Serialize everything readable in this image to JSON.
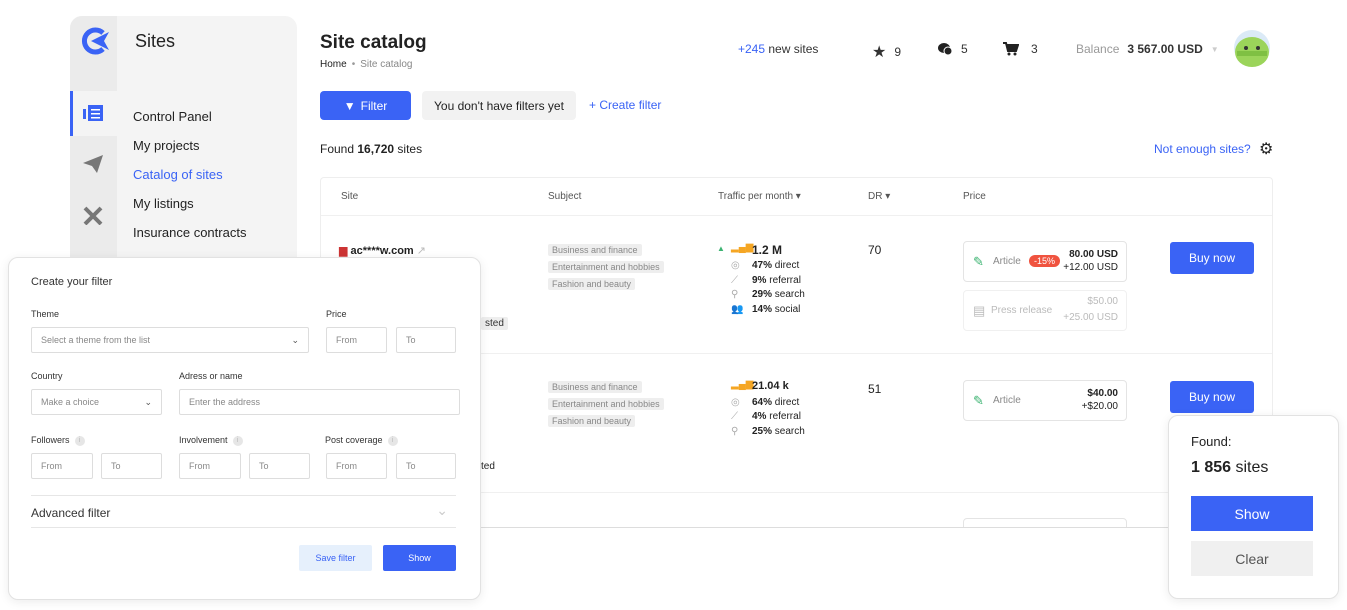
{
  "sidebar": {
    "title": "Sites",
    "items": [
      {
        "label": "Control Panel"
      },
      {
        "label": "My projects"
      },
      {
        "label": "Catalog of sites",
        "active": true
      },
      {
        "label": "My listings"
      },
      {
        "label": "Insurance contracts"
      }
    ]
  },
  "header": {
    "title": "Site catalog",
    "breadcrumb": [
      "Home",
      "Site catalog"
    ],
    "new_sites_count": "+245",
    "new_sites_label": "new sites",
    "favorites": "9",
    "messages": "5",
    "cart": "3",
    "balance_label": "Balance",
    "balance_value": "3 567.00 USD"
  },
  "toolbar": {
    "filter_label": "Filter",
    "no_filters": "You don't have filters yet",
    "create_filter": "+ Create filter"
  },
  "results": {
    "found_prefix": "Found",
    "found_count": "16,720",
    "found_suffix": "sites",
    "not_enough": "Not enough sites?"
  },
  "table": {
    "columns": [
      "Site",
      "Subject",
      "Traffic per month ▾",
      "DR ▾",
      "Price"
    ],
    "rows": [
      {
        "site": "ac****w.com",
        "partial_tag": "sted",
        "subjects": [
          "Business and finance",
          "Entertainment and hobbies",
          "Fashion and beauty"
        ],
        "traffic": "1.2 M",
        "direct": "47%",
        "referral": "9%",
        "search": "29%",
        "social": "14%",
        "dr": "70",
        "prices": [
          {
            "type": "Article",
            "discount": "-15%",
            "price": "80.00 USD",
            "extra": "+12.00 USD"
          },
          {
            "type": "Press release",
            "price": "$50.00",
            "extra": "+25.00 USD"
          }
        ],
        "buy": "Buy now"
      },
      {
        "site": "",
        "partial_tag": "ted",
        "subjects": [
          "Business and finance",
          "Entertainment and hobbies",
          "Fashion and beauty"
        ],
        "traffic": "21.04 k",
        "direct": "64%",
        "referral": "4%",
        "search": "25%",
        "dr": "51",
        "prices": [
          {
            "type": "Article",
            "price": "$40.00",
            "extra": "+$20.00"
          }
        ],
        "buy": "Buy now"
      }
    ],
    "traffic_words": {
      "direct": "direct",
      "referral": "referral",
      "search": "search",
      "social": "social"
    }
  },
  "filter_modal": {
    "title": "Create your filter",
    "theme_label": "Theme",
    "theme_placeholder": "Select a theme from the list",
    "price_label": "Price",
    "country_label": "Country",
    "country_placeholder": "Make a choice",
    "address_label": "Adress or name",
    "address_placeholder": "Enter the address",
    "followers_label": "Followers",
    "involvement_label": "Involvement",
    "post_coverage_label": "Post coverage",
    "from": "From",
    "to": "To",
    "advanced": "Advanced filter",
    "save": "Save filter",
    "show": "Show"
  },
  "found_popup": {
    "label": "Found:",
    "count": "1 856",
    "suffix": "sites",
    "show": "Show",
    "clear": "Clear"
  },
  "colors": {
    "accent": "#3a63f5",
    "discount": "#f0533f",
    "traffic_bar": "#f5a623",
    "positive": "#3cb371"
  }
}
